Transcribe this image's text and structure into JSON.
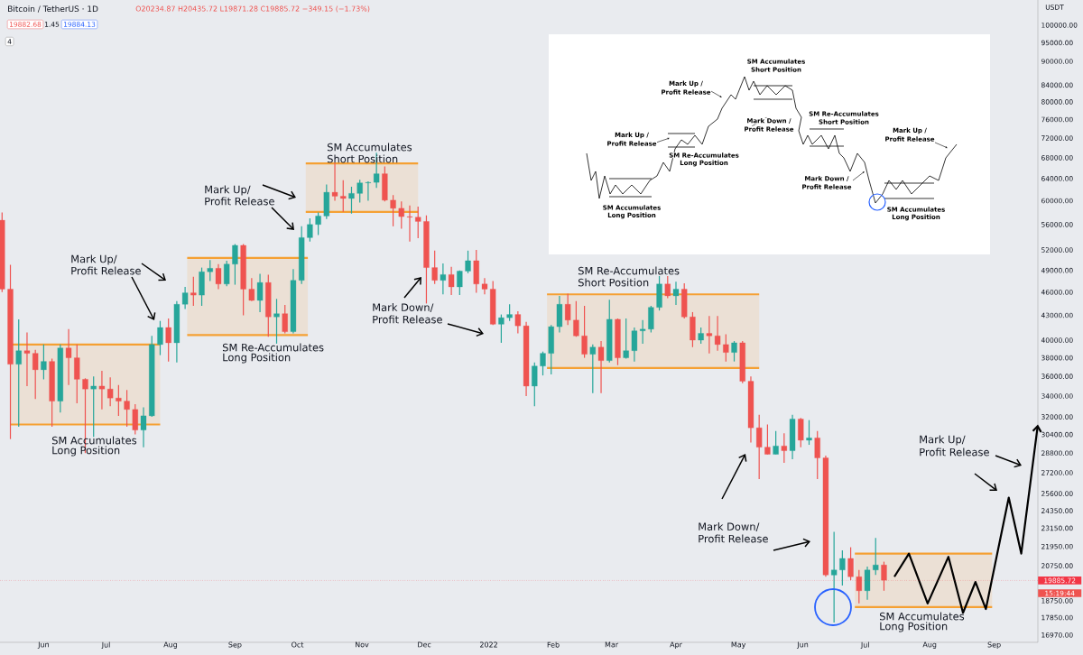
{
  "chart_data": {
    "type": "candlestick",
    "title": "Bitcoin / TetherUS · 1D",
    "subtitle": "O20234.87 H20435.72 L19871.28 C19885.72 −349.15 (−1.73%)",
    "ylabel": "USDT",
    "log": "y",
    "xlim": [
      "2021-05-11",
      "2022-09-22"
    ],
    "ylim": [
      16610,
      107600
    ],
    "xticks": [
      {
        "value": "2021-06-01",
        "label": "Jun"
      },
      {
        "value": "2021-07-01",
        "label": "Jul"
      },
      {
        "value": "2021-08-01",
        "label": "Aug"
      },
      {
        "value": "2021-09-01",
        "label": "Sep"
      },
      {
        "value": "2021-10-01",
        "label": "Oct"
      },
      {
        "value": "2021-11-01",
        "label": "Nov"
      },
      {
        "value": "2021-12-01",
        "label": "Dec"
      },
      {
        "value": "2022-01-01",
        "label": "2022"
      },
      {
        "value": "2022-02-01",
        "label": "Feb"
      },
      {
        "value": "2022-03-01",
        "label": "Mar"
      },
      {
        "value": "2022-04-01",
        "label": "Apr"
      },
      {
        "value": "2022-05-01",
        "label": "May"
      },
      {
        "value": "2022-06-01",
        "label": "Jun"
      },
      {
        "value": "2022-07-01",
        "label": "Jul"
      },
      {
        "value": "2022-08-01",
        "label": "Aug"
      },
      {
        "value": "2022-09-01",
        "label": "Sep"
      }
    ],
    "yticks": [
      {
        "value": 100000,
        "label": "100000.00"
      },
      {
        "value": 95000,
        "label": "95000.00"
      },
      {
        "value": 90000,
        "label": "90000.00"
      },
      {
        "value": 84000,
        "label": "84000.00"
      },
      {
        "value": 80000,
        "label": "80000.00"
      },
      {
        "value": 76000,
        "label": "76000.00"
      },
      {
        "value": 72000,
        "label": "72000.00"
      },
      {
        "value": 68000,
        "label": "68000.00"
      },
      {
        "value": 64000,
        "label": "64000.00"
      },
      {
        "value": 60000,
        "label": "60000.00"
      },
      {
        "value": 56000,
        "label": "56000.00"
      },
      {
        "value": 52000,
        "label": "52000.00"
      },
      {
        "value": 49000,
        "label": "49000.00"
      },
      {
        "value": 46000,
        "label": "46000.00"
      },
      {
        "value": 43000,
        "label": "43000.00"
      },
      {
        "value": 40000,
        "label": "40000.00"
      },
      {
        "value": 38000,
        "label": "38000.00"
      },
      {
        "value": 36000,
        "label": "36000.00"
      },
      {
        "value": 34000,
        "label": "34000.00"
      },
      {
        "value": 32000,
        "label": "32000.00"
      },
      {
        "value": 30400,
        "label": "30400.00"
      },
      {
        "value": 28800,
        "label": "28800.00"
      },
      {
        "value": 27200,
        "label": "27200.00"
      },
      {
        "value": 25600,
        "label": "25600.00"
      },
      {
        "value": 24350,
        "label": "24350.00"
      },
      {
        "value": 23150,
        "label": "23150.00"
      },
      {
        "value": 21950,
        "label": "21950.00"
      },
      {
        "value": 20750,
        "label": "20750.00"
      },
      {
        "value": 18750,
        "label": "18750.00"
      },
      {
        "value": 17850,
        "label": "17850.00"
      },
      {
        "value": 16970,
        "label": "16970.00"
      }
    ],
    "x": [
      "2021-05-12",
      "2021-05-16",
      "2021-05-20",
      "2021-05-24",
      "2021-05-28",
      "2021-06-01",
      "2021-06-05",
      "2021-06-09",
      "2021-06-13",
      "2021-06-17",
      "2021-06-21",
      "2021-06-25",
      "2021-06-29",
      "2021-07-03",
      "2021-07-07",
      "2021-07-11",
      "2021-07-15",
      "2021-07-19",
      "2021-07-23",
      "2021-07-27",
      "2021-07-31",
      "2021-08-04",
      "2021-08-08",
      "2021-08-12",
      "2021-08-16",
      "2021-08-20",
      "2021-08-24",
      "2021-08-28",
      "2021-09-01",
      "2021-09-05",
      "2021-09-09",
      "2021-09-13",
      "2021-09-17",
      "2021-09-21",
      "2021-09-25",
      "2021-09-29",
      "2021-10-03",
      "2021-10-07",
      "2021-10-11",
      "2021-10-15",
      "2021-10-19",
      "2021-10-23",
      "2021-10-27",
      "2021-10-31",
      "2021-11-04",
      "2021-11-08",
      "2021-11-12",
      "2021-11-16",
      "2021-11-20",
      "2021-11-24",
      "2021-11-28",
      "2021-12-02",
      "2021-12-06",
      "2021-12-10",
      "2021-12-14",
      "2021-12-18",
      "2021-12-22",
      "2021-12-26",
      "2021-12-30",
      "2022-01-03",
      "2022-01-07",
      "2022-01-11",
      "2022-01-15",
      "2022-01-19",
      "2022-01-23",
      "2022-01-27",
      "2022-01-31",
      "2022-02-04",
      "2022-02-08",
      "2022-02-12",
      "2022-02-16",
      "2022-02-20",
      "2022-02-24",
      "2022-02-28",
      "2022-03-04",
      "2022-03-08",
      "2022-03-12",
      "2022-03-16",
      "2022-03-20",
      "2022-03-24",
      "2022-03-28",
      "2022-04-01",
      "2022-04-05",
      "2022-04-09",
      "2022-04-13",
      "2022-04-17",
      "2022-04-21",
      "2022-04-25",
      "2022-04-29",
      "2022-05-03",
      "2022-05-07",
      "2022-05-11",
      "2022-05-15",
      "2022-05-19",
      "2022-05-23",
      "2022-05-27",
      "2022-05-31",
      "2022-06-04",
      "2022-06-08",
      "2022-06-12",
      "2022-06-16",
      "2022-06-20",
      "2022-06-24",
      "2022-06-28",
      "2022-07-02",
      "2022-07-06",
      "2022-07-10"
    ],
    "ohlc": [
      [
        56700,
        58000,
        46000,
        46400
      ],
      [
        46400,
        49800,
        30000,
        37300
      ],
      [
        37300,
        42500,
        31100,
        38800
      ],
      [
        38800,
        40900,
        35000,
        38500
      ],
      [
        38500,
        38900,
        33700,
        36700
      ],
      [
        36700,
        39500,
        35700,
        37600
      ],
      [
        37600,
        37900,
        31100,
        33500
      ],
      [
        33500,
        39500,
        32400,
        39100
      ],
      [
        39100,
        41300,
        35100,
        38000
      ],
      [
        38000,
        39500,
        33300,
        35700
      ],
      [
        35700,
        35800,
        28800,
        34700
      ],
      [
        34700,
        36000,
        30200,
        35000
      ],
      [
        35000,
        36600,
        32700,
        34700
      ],
      [
        34700,
        35900,
        33000,
        33800
      ],
      [
        33800,
        35100,
        32100,
        33500
      ],
      [
        33500,
        34600,
        31100,
        32700
      ],
      [
        32700,
        33200,
        30400,
        30800
      ],
      [
        30800,
        32900,
        29300,
        32100
      ],
      [
        32100,
        40500,
        32000,
        39500
      ],
      [
        39500,
        42300,
        38300,
        41500
      ],
      [
        41500,
        42600,
        37600,
        39700
      ],
      [
        39700,
        44800,
        37500,
        44400
      ],
      [
        44400,
        46700,
        43800,
        45900
      ],
      [
        45900,
        48100,
        44200,
        45600
      ],
      [
        45600,
        49400,
        44200,
        48800
      ],
      [
        48800,
        50500,
        47500,
        49300
      ],
      [
        49300,
        49900,
        46400,
        47100
      ],
      [
        47100,
        50400,
        46800,
        49900
      ],
      [
        49900,
        52900,
        47000,
        52700
      ],
      [
        52700,
        52900,
        43000,
        46400
      ],
      [
        46400,
        47900,
        44800,
        44900
      ],
      [
        44900,
        48500,
        43400,
        47300
      ],
      [
        47300,
        48400,
        40400,
        42800
      ],
      [
        42800,
        45100,
        39600,
        43200
      ],
      [
        43200,
        44300,
        40800,
        41000
      ],
      [
        41000,
        49200,
        40800,
        47600
      ],
      [
        47600,
        55700,
        47100,
        53900
      ],
      [
        53900,
        57000,
        53300,
        56000
      ],
      [
        56000,
        58000,
        54300,
        57400
      ],
      [
        57400,
        62900,
        56900,
        61500
      ],
      [
        61500,
        67000,
        60000,
        60800
      ],
      [
        60800,
        63700,
        58100,
        60400
      ],
      [
        60400,
        62500,
        57800,
        61300
      ],
      [
        61300,
        63800,
        59700,
        63200
      ],
      [
        63200,
        63500,
        60000,
        63300
      ],
      [
        63300,
        69000,
        62300,
        64900
      ],
      [
        64900,
        66300,
        59900,
        60100
      ],
      [
        60100,
        61000,
        55700,
        58700
      ],
      [
        58700,
        59900,
        55300,
        57300
      ],
      [
        57300,
        59200,
        53300,
        57200
      ],
      [
        57200,
        59000,
        53800,
        56500
      ],
      [
        56500,
        57500,
        44500,
        49400
      ],
      [
        49400,
        51900,
        47100,
        47600
      ],
      [
        47600,
        50000,
        45700,
        48400
      ],
      [
        48400,
        49500,
        45600,
        46700
      ],
      [
        46700,
        49000,
        45600,
        48900
      ],
      [
        48900,
        51900,
        48600,
        50400
      ],
      [
        50400,
        52000,
        45900,
        47100
      ],
      [
        47100,
        47900,
        45700,
        46400
      ],
      [
        46400,
        47500,
        41800,
        41900
      ],
      [
        41900,
        43100,
        39700,
        42700
      ],
      [
        42700,
        44400,
        42300,
        43100
      ],
      [
        43100,
        43500,
        40800,
        41700
      ],
      [
        41700,
        42200,
        34000,
        35000
      ],
      [
        35000,
        37500,
        33000,
        37100
      ],
      [
        37100,
        38700,
        36100,
        38500
      ],
      [
        38500,
        41800,
        36200,
        41600
      ],
      [
        41600,
        45500,
        40900,
        44400
      ],
      [
        44400,
        45800,
        41800,
        42400
      ],
      [
        42400,
        44800,
        40400,
        40500
      ],
      [
        40500,
        44200,
        38000,
        38400
      ],
      [
        38400,
        39500,
        34300,
        39200
      ],
      [
        39200,
        39900,
        34300,
        37700
      ],
      [
        37700,
        45000,
        37500,
        42500
      ],
      [
        42500,
        42600,
        37200,
        38000
      ],
      [
        38000,
        42600,
        37900,
        38800
      ],
      [
        38800,
        41500,
        37600,
        41100
      ],
      [
        41100,
        42400,
        39600,
        41300
      ],
      [
        41300,
        44200,
        40900,
        44000
      ],
      [
        44000,
        48200,
        43600,
        47100
      ],
      [
        47100,
        48200,
        45200,
        45500
      ],
      [
        45500,
        47400,
        44300,
        46400
      ],
      [
        46400,
        47200,
        42600,
        42800
      ],
      [
        42800,
        43400,
        39200,
        40000
      ],
      [
        40000,
        41500,
        39600,
        40800
      ],
      [
        40800,
        42900,
        38500,
        40500
      ],
      [
        40500,
        42900,
        38800,
        39500
      ],
      [
        39500,
        40700,
        37600,
        38600
      ],
      [
        38600,
        39900,
        37600,
        39700
      ],
      [
        39700,
        39900,
        35300,
        35500
      ],
      [
        35500,
        36000,
        29700,
        31000
      ],
      [
        31000,
        32200,
        26700,
        29300
      ],
      [
        29300,
        31300,
        28700,
        28700
      ],
      [
        28700,
        30700,
        28700,
        29400
      ],
      [
        29400,
        30500,
        28000,
        29000
      ],
      [
        29000,
        32200,
        28300,
        31800
      ],
      [
        31800,
        31900,
        29300,
        29900
      ],
      [
        29900,
        31700,
        29500,
        30100
      ],
      [
        30100,
        30700,
        26700,
        28400
      ],
      [
        28400,
        28600,
        20100,
        20200
      ],
      [
        20200,
        22900,
        17600,
        20500
      ],
      [
        20500,
        21700,
        19600,
        21200
      ],
      [
        21200,
        21900,
        19900,
        20100
      ],
      [
        20100,
        20500,
        18600,
        19300
      ],
      [
        19300,
        20700,
        18800,
        20500
      ],
      [
        20500,
        22500,
        20200,
        20800
      ],
      [
        20800,
        21000,
        19300,
        19900
      ]
    ],
    "series": [
      {
        "type": "line",
        "color": "#f5a033",
        "x": [
          "2021-05-16",
          "2021-07-27"
        ],
        "values": [
          39500,
          39500
        ],
        "lower": [
          31300,
          31300
        ],
        "upper": [
          39500,
          39500
        ]
      },
      {
        "type": "line",
        "color": "#f5a033",
        "x": [
          "2021-05-16",
          "2021-07-27"
        ],
        "values": [
          31300,
          31300
        ]
      },
      {
        "type": "line",
        "color": "#f5a033",
        "x": [
          "2021-08-09",
          "2021-10-06"
        ],
        "values": [
          50800,
          50800
        ],
        "lower": [
          40600,
          40600
        ],
        "upper": [
          50800,
          50800
        ]
      },
      {
        "type": "line",
        "color": "#f5a033",
        "x": [
          "2021-08-09",
          "2021-10-06"
        ],
        "values": [
          40600,
          40600
        ]
      },
      {
        "type": "line",
        "color": "#f5a033",
        "x": [
          "2021-10-05",
          "2021-11-28"
        ],
        "values": [
          66900,
          66900
        ],
        "lower": [
          58100,
          58100
        ],
        "upper": [
          66900,
          66900
        ]
      },
      {
        "type": "line",
        "color": "#f5a033",
        "x": [
          "2021-10-05",
          "2021-11-28"
        ],
        "values": [
          58100,
          58100
        ]
      },
      {
        "type": "line",
        "color": "#f5a033",
        "x": [
          "2022-01-29",
          "2022-05-11"
        ],
        "values": [
          45700,
          45700
        ],
        "lower": [
          36900,
          36900
        ],
        "upper": [
          45700,
          45700
        ]
      },
      {
        "type": "line",
        "color": "#f5a033",
        "x": [
          "2022-01-29",
          "2022-05-11"
        ],
        "values": [
          36900,
          36900
        ]
      },
      {
        "type": "line",
        "color": "#f5a033",
        "x": [
          "2022-06-26",
          "2022-08-31"
        ],
        "values": [
          21500,
          21500
        ],
        "lower": [
          18400,
          18400
        ],
        "upper": [
          21500,
          21500
        ]
      },
      {
        "type": "line",
        "color": "#f5a033",
        "x": [
          "2022-06-26",
          "2022-08-31"
        ],
        "values": [
          18400,
          18400
        ]
      },
      {
        "type": "line",
        "color": "#000000",
        "x": [
          "2022-07-15",
          "2022-07-22",
          "2022-07-31",
          "2022-08-10",
          "2022-08-17",
          "2022-08-23",
          "2022-08-28",
          "2022-09-08",
          "2022-09-14",
          "2022-09-22"
        ],
        "values": [
          20100,
          21500,
          18600,
          21300,
          18100,
          19800,
          18300,
          25300,
          21500,
          31300
        ]
      }
    ],
    "ref_lines": [
      {
        "axis": "y",
        "value": 19885.72,
        "label": "19885.72",
        "color": "#f23645",
        "line_style": "dotted"
      }
    ],
    "annotations": [
      "SM Accumulates",
      "Long Position",
      "Mark Up/",
      "Profit Release",
      "SM Re-Accumulates",
      "Long Position",
      "Mark Up/",
      "Profit Release",
      "SM Accumulates",
      "Short Position",
      "Mark Down/",
      "Profit Release",
      "SM Re-Accumulates",
      "Short Position",
      "Mark Down/",
      "Profit Release",
      "SM Accumulates",
      "Long Position",
      "Mark Up/",
      "Profit Release",
      "19882.68",
      "1.45",
      "19884.13",
      "4",
      "15:19:44",
      "SM Accumulates",
      "Long Position",
      "Mark Up /",
      "Profit Release",
      "SM Re-Accumulates",
      "Long Position",
      "Mark Up /",
      "Profit Release",
      "SM Accumulates",
      "Short Position",
      "Mark Down /",
      "Profit Release",
      "SM Re-Accumulates",
      "Short Position",
      "Mark Down /",
      "Profit Release",
      "SM Accumulates",
      "Long Position",
      "Mark Up /",
      "Profit Release"
    ]
  }
}
